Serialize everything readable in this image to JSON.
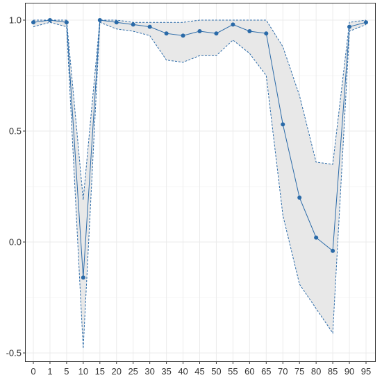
{
  "chart_data": {
    "type": "line",
    "title": "",
    "xlabel": "",
    "ylabel": "",
    "x_categories": [
      "0",
      "1",
      "5",
      "10",
      "15",
      "20",
      "25",
      "30",
      "35",
      "40",
      "45",
      "50",
      "55",
      "60",
      "65",
      "70",
      "75",
      "80",
      "85",
      "90",
      "95"
    ],
    "ylim": [
      -0.55,
      1.05
    ],
    "yticks": [
      {
        "value": -0.5,
        "label": "-0.5"
      },
      {
        "value": 0.0,
        "label": "0.0"
      },
      {
        "value": 0.5,
        "label": "0.5"
      },
      {
        "value": 1.0,
        "label": "1.0"
      }
    ],
    "series": [
      {
        "values": [
          0.99,
          1.0,
          0.99,
          -0.16,
          1.0,
          0.99,
          0.98,
          0.97,
          0.94,
          0.93,
          0.95,
          0.94,
          0.98,
          0.95,
          0.94,
          0.53,
          0.2,
          0.02,
          -0.04,
          0.97,
          0.99
        ],
        "lower": [
          0.97,
          0.99,
          0.97,
          -0.48,
          0.99,
          0.96,
          0.95,
          0.93,
          0.82,
          0.81,
          0.84,
          0.84,
          0.91,
          0.85,
          0.75,
          0.12,
          -0.19,
          -0.3,
          -0.41,
          0.95,
          0.98
        ],
        "upper": [
          1.0,
          1.0,
          1.0,
          0.19,
          1.0,
          1.0,
          0.99,
          0.99,
          0.99,
          0.99,
          1.0,
          1.0,
          1.0,
          1.0,
          1.0,
          0.88,
          0.66,
          0.36,
          0.35,
          0.99,
          1.0
        ]
      }
    ],
    "grid": true,
    "legend": "none",
    "colors": {
      "line": "#2a6aa8",
      "band_fill": "#e8e8e8",
      "grid": "#ebebeb",
      "axis_border": "#333333"
    }
  }
}
